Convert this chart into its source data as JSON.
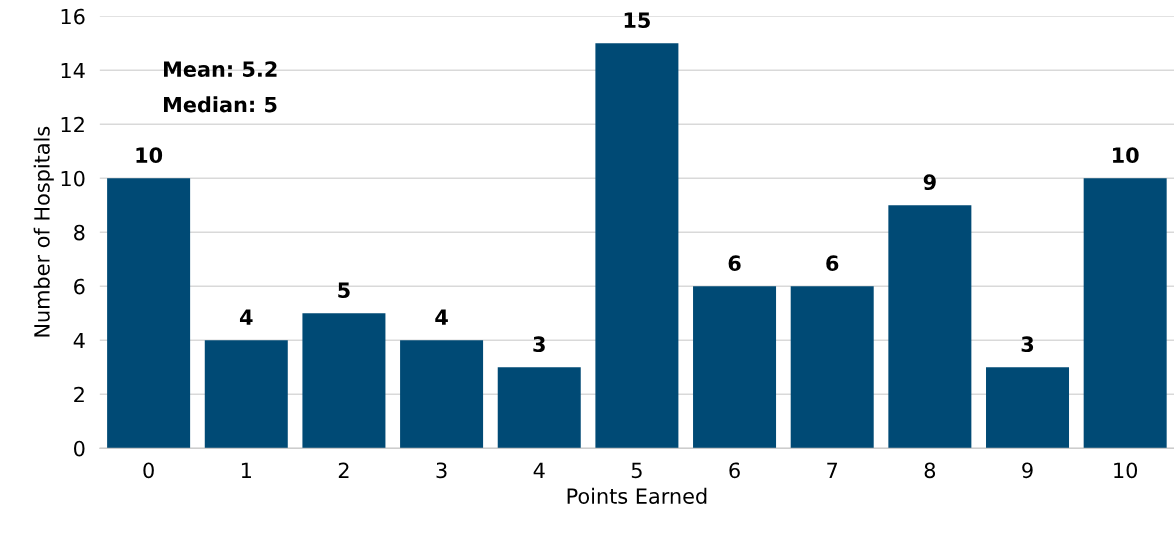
{
  "chart_data": {
    "type": "bar",
    "xlabel": "Points Earned",
    "ylabel": "Number of Hospitals",
    "categories": [
      "0",
      "1",
      "2",
      "3",
      "4",
      "5",
      "6",
      "7",
      "8",
      "9",
      "10"
    ],
    "values": [
      10,
      4,
      5,
      4,
      3,
      15,
      6,
      6,
      9,
      3,
      10
    ],
    "color": "#004a75",
    "ylim": [
      0,
      16
    ],
    "yticks": [
      0,
      2,
      4,
      6,
      8,
      10,
      12,
      14,
      16
    ],
    "grid": "y",
    "data_labels": true,
    "annotations": [
      "Mean: 5.2",
      "Median: 5"
    ]
  }
}
